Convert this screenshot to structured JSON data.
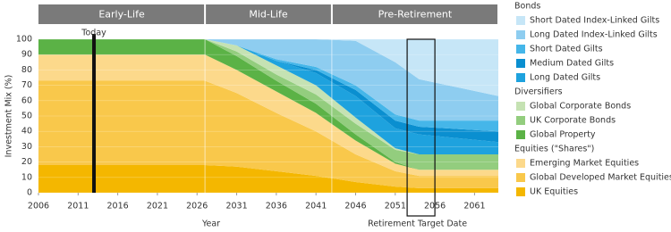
{
  "chart_data": {
    "type": "stacked-area",
    "y_label": "Investment Mix  (%)",
    "x_label": "Year",
    "xlim": [
      2006,
      2064
    ],
    "xticks": [
      2006,
      2011,
      2016,
      2021,
      2026,
      2031,
      2036,
      2041,
      2046,
      2051,
      2056,
      2061
    ],
    "ylim": [
      0,
      100
    ],
    "yticks": [
      0,
      10,
      20,
      30,
      40,
      50,
      60,
      70,
      80,
      90,
      100
    ],
    "phases": [
      {
        "label": "Early-Life",
        "start": 2006,
        "end": 2027
      },
      {
        "label": "Mid-Life",
        "start": 2027,
        "end": 2043
      },
      {
        "label": "Pre-Retirement",
        "start": 2043,
        "end": 2064
      }
    ],
    "today": {
      "label": "Today",
      "x": 2013
    },
    "target": {
      "label": "Retirement Target Date",
      "range": [
        2052.5,
        2056
      ]
    },
    "x": [
      2006,
      2027,
      2031,
      2036,
      2041,
      2046,
      2051,
      2054,
      2064
    ],
    "series_groups": [
      {
        "name": "Bonds",
        "series": [
          {
            "name": "Short Dated Index-Linked Gilts",
            "color": "#c6e6f7",
            "values": [
              0,
              0,
              0,
              0,
              0,
              1,
              15,
              26,
              37
            ]
          },
          {
            "name": "Long Dated Index-Linked Gilts",
            "color": "#8ecdf0",
            "values": [
              0,
              0,
              4,
              13,
              18,
              29,
              34,
              27,
              16
            ]
          },
          {
            "name": "Short Dated Gilts",
            "color": "#45b6e9",
            "values": [
              0,
              0,
              0,
              1,
              2,
              3,
              4,
              4,
              7
            ]
          },
          {
            "name": "Medium Dated Gilts",
            "color": "#0a8fd0",
            "values": [
              0,
              0,
              0,
              0,
              2,
              4,
              5,
              5,
              7
            ]
          },
          {
            "name": "Long Dated Gilts",
            "color": "#1ea2de",
            "values": [
              0,
              0,
              0,
              3,
              8,
              14,
              13,
              13,
              8
            ]
          }
        ]
      },
      {
        "name": "Diversifiers",
        "series": [
          {
            "name": "Global Corporate Bonds",
            "color": "#c5e2b3",
            "values": [
              0,
              0,
              4,
              6,
              6,
              4,
              1,
              0,
              0
            ]
          },
          {
            "name": "UK Corporate Bonds",
            "color": "#93cd7e",
            "values": [
              0,
              0,
              3,
              4,
              6,
              7,
              8,
              10,
              10
            ]
          },
          {
            "name": "Global Property",
            "color": "#5bb246",
            "values": [
              10,
              10,
              9,
              7,
              6,
              4,
              1,
              0,
              0
            ]
          }
        ]
      },
      {
        "name": "Equities (\"Shares\")",
        "series": [
          {
            "name": "Emerging Market Equities",
            "color": "#fcd98b",
            "values": [
              17,
              17,
              15,
              14,
              12,
              9,
              5,
              4,
              4
            ]
          },
          {
            "name": "Global Developed Market Equities",
            "color": "#f9c84b",
            "values": [
              55,
              55,
              48,
              38,
              29,
              18,
              10,
              8,
              8
            ]
          },
          {
            "name": "UK Equities",
            "color": "#f4b700",
            "values": [
              18,
              18,
              17,
              14,
              11,
              7,
              4,
              3,
              3
            ]
          }
        ]
      }
    ]
  }
}
